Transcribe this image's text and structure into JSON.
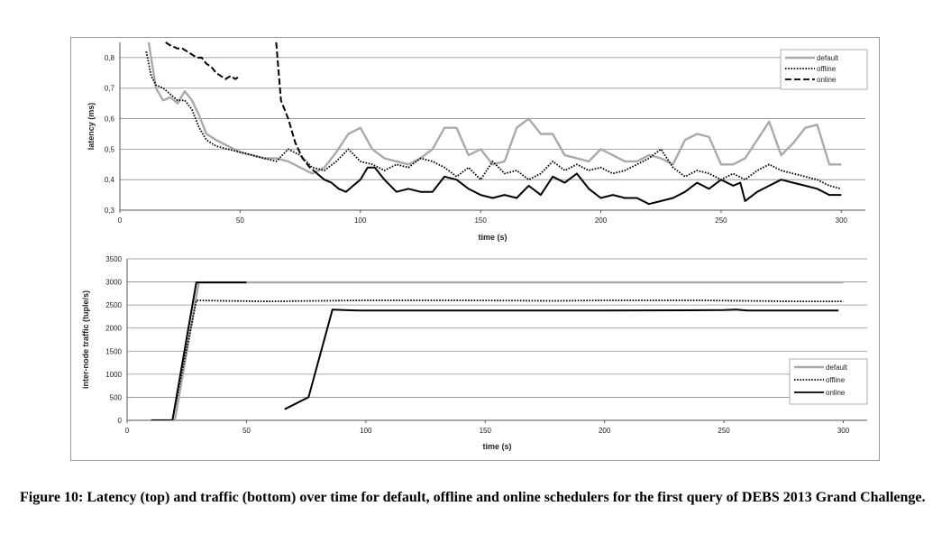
{
  "caption": "Figure 10: Latency (top) and traffic (bottom) over time for default, offline and online schedulers for the first query of DEBS 2013 Grand Challenge.",
  "chart_data": [
    {
      "type": "line",
      "xlabel": "time (s)",
      "ylabel": "latency (ms)",
      "xlim": [
        0,
        310
      ],
      "ylim": [
        0.3,
        0.85
      ],
      "x_ticks": [
        "0",
        "50",
        "100",
        "150",
        "200",
        "250",
        "300"
      ],
      "y_ticks": [
        "0,3",
        "0,4",
        "0,5",
        "0,6",
        "0,7",
        "0,8"
      ],
      "x_tick_values": [
        0,
        50,
        100,
        150,
        200,
        250,
        300
      ],
      "y_tick_values": [
        0.3,
        0.4,
        0.5,
        0.6,
        0.7,
        0.8
      ],
      "grid": "horizontal",
      "legend": "top-right",
      "series": [
        {
          "name": "default",
          "color": "#aaaaaa",
          "dash": "solid",
          "x": [
            12,
            15,
            18,
            21,
            24,
            27,
            30,
            33,
            36,
            40,
            45,
            50,
            55,
            60,
            65,
            70,
            75,
            80,
            85,
            90,
            95,
            100,
            105,
            110,
            115,
            120,
            125,
            130,
            135,
            140,
            145,
            150,
            155,
            160,
            165,
            170,
            175,
            180,
            185,
            190,
            195,
            200,
            205,
            210,
            215,
            220,
            225,
            230,
            235,
            240,
            245,
            250,
            255,
            260,
            265,
            270,
            275,
            280,
            285,
            290,
            295,
            300
          ],
          "y": [
            0.85,
            0.7,
            0.66,
            0.67,
            0.65,
            0.69,
            0.66,
            0.61,
            0.55,
            0.53,
            0.51,
            0.49,
            0.48,
            0.47,
            0.47,
            0.46,
            0.44,
            0.42,
            0.44,
            0.49,
            0.55,
            0.57,
            0.5,
            0.47,
            0.46,
            0.45,
            0.47,
            0.5,
            0.57,
            0.57,
            0.48,
            0.5,
            0.45,
            0.46,
            0.57,
            0.6,
            0.55,
            0.55,
            0.48,
            0.47,
            0.46,
            0.5,
            0.48,
            0.46,
            0.46,
            0.48,
            0.47,
            0.45,
            0.53,
            0.55,
            0.54,
            0.45,
            0.45,
            0.47,
            0.53,
            0.59,
            0.48,
            0.52,
            0.57,
            0.58,
            0.45,
            0.45
          ]
        },
        {
          "name": "offline",
          "color": "#000000",
          "dash": "dotted",
          "x": [
            11,
            13,
            15,
            18,
            21,
            24,
            27,
            30,
            33,
            36,
            40,
            45,
            50,
            55,
            60,
            65,
            70,
            75,
            80,
            85,
            90,
            95,
            100,
            105,
            110,
            115,
            120,
            125,
            130,
            135,
            140,
            145,
            150,
            155,
            160,
            165,
            170,
            175,
            180,
            185,
            190,
            195,
            200,
            205,
            210,
            215,
            220,
            225,
            230,
            235,
            240,
            245,
            250,
            255,
            260,
            265,
            270,
            275,
            280,
            285,
            290,
            295,
            300
          ],
          "y": [
            0.82,
            0.74,
            0.71,
            0.7,
            0.68,
            0.66,
            0.66,
            0.63,
            0.57,
            0.53,
            0.51,
            0.5,
            0.49,
            0.48,
            0.47,
            0.46,
            0.5,
            0.48,
            0.44,
            0.43,
            0.46,
            0.5,
            0.46,
            0.45,
            0.43,
            0.45,
            0.44,
            0.47,
            0.46,
            0.44,
            0.41,
            0.44,
            0.4,
            0.46,
            0.42,
            0.43,
            0.4,
            0.42,
            0.46,
            0.43,
            0.45,
            0.43,
            0.44,
            0.42,
            0.43,
            0.45,
            0.47,
            0.5,
            0.44,
            0.41,
            0.43,
            0.42,
            0.4,
            0.42,
            0.4,
            0.43,
            0.45,
            0.43,
            0.42,
            0.41,
            0.4,
            0.38,
            0.37
          ]
        },
        {
          "name": "online",
          "color": "#000000",
          "dash": "dashed",
          "x": [
            19,
            21,
            24,
            26,
            28,
            30,
            32,
            34,
            36,
            38,
            40,
            42,
            44,
            46,
            48,
            50
          ],
          "y": [
            0.85,
            0.84,
            0.83,
            0.83,
            0.82,
            0.81,
            0.8,
            0.8,
            0.78,
            0.77,
            0.75,
            0.74,
            0.73,
            0.74,
            0.73,
            0.74
          ]
        },
        {
          "name": "online",
          "color": "#000000",
          "dash": "dashed",
          "x": [
            65,
            67,
            70,
            73,
            76,
            79,
            82
          ],
          "y": [
            0.85,
            0.66,
            0.6,
            0.52,
            0.47,
            0.44,
            0.42
          ]
        },
        {
          "name": "online",
          "color": "#000000",
          "dash": "solid",
          "x": [
            82,
            85,
            88,
            91,
            94,
            97,
            100,
            103,
            106,
            110,
            115,
            120,
            125,
            130,
            135,
            140,
            145,
            150,
            155,
            160,
            165,
            170,
            175,
            180,
            185,
            190,
            195,
            200,
            205,
            210,
            215,
            220,
            225,
            230,
            235,
            240,
            245,
            250,
            255,
            258,
            260,
            265,
            270,
            275,
            280,
            285,
            290,
            295,
            300
          ],
          "y": [
            0.42,
            0.4,
            0.39,
            0.37,
            0.36,
            0.38,
            0.4,
            0.44,
            0.44,
            0.4,
            0.36,
            0.37,
            0.36,
            0.36,
            0.41,
            0.4,
            0.37,
            0.35,
            0.34,
            0.35,
            0.34,
            0.38,
            0.35,
            0.41,
            0.39,
            0.42,
            0.37,
            0.34,
            0.35,
            0.34,
            0.34,
            0.32,
            0.33,
            0.34,
            0.36,
            0.39,
            0.37,
            0.4,
            0.38,
            0.39,
            0.33,
            0.36,
            0.38,
            0.4,
            0.39,
            0.38,
            0.37,
            0.35,
            0.35
          ]
        }
      ]
    },
    {
      "type": "line",
      "xlabel": "time (s)",
      "ylabel": "inter-node traffic (tuple/s)",
      "xlim": [
        0,
        310
      ],
      "ylim": [
        0,
        3500
      ],
      "x_ticks": [
        "0",
        "50",
        "100",
        "150",
        "200",
        "250",
        "300"
      ],
      "y_ticks": [
        "0",
        "500",
        "1000",
        "1500",
        "2000",
        "2500",
        "3000",
        "3500"
      ],
      "x_tick_values": [
        0,
        50,
        100,
        150,
        200,
        250,
        300
      ],
      "y_tick_values": [
        0,
        500,
        1000,
        1500,
        2000,
        2500,
        3000,
        3500
      ],
      "grid": "horizontal",
      "legend": "bottom-right",
      "series": [
        {
          "name": "default",
          "color": "#aaaaaa",
          "dash": "solid",
          "x": [
            10,
            20,
            30,
            50,
            100,
            150,
            200,
            250,
            300
          ],
          "y": [
            0,
            0,
            2990,
            2990,
            2990,
            2990,
            2990,
            2990,
            2990
          ]
        },
        {
          "name": "offline",
          "color": "#000000",
          "dash": "dotted",
          "x": [
            10,
            19,
            29,
            40,
            60,
            80,
            100,
            140,
            180,
            200,
            240,
            280,
            300
          ],
          "y": [
            0,
            0,
            2600,
            2590,
            2580,
            2590,
            2600,
            2600,
            2590,
            2600,
            2600,
            2580,
            2580
          ]
        },
        {
          "name": "online",
          "color": "#000000",
          "dash": "solid",
          "x": [
            10,
            19,
            29,
            50
          ],
          "y": [
            0,
            0,
            2990,
            2990
          ]
        },
        {
          "name": "online",
          "color": "#000000",
          "dash": "solid",
          "x": [
            66,
            76,
            86,
            97,
            150,
            200,
            250,
            255,
            260,
            298
          ],
          "y": [
            240,
            500,
            2400,
            2380,
            2380,
            2380,
            2390,
            2400,
            2380,
            2380
          ]
        }
      ]
    }
  ]
}
